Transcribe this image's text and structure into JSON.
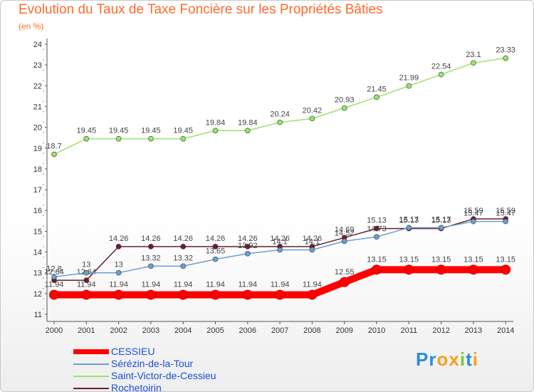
{
  "title": "Evolution du Taux de Taxe Foncière sur les Propriétés Bâties",
  "subtitle": "(en %)",
  "logo": {
    "text": "Proxiti"
  },
  "chart_data": {
    "type": "line",
    "title": "Evolution du Taux de Taxe Foncière sur les Propriétés Bâties",
    "ylabel": "(en %)",
    "xlabel": "",
    "ylim": [
      11,
      24
    ],
    "yticks": [
      11,
      12,
      13,
      14,
      15,
      16,
      17,
      18,
      19,
      20,
      21,
      22,
      23,
      24
    ],
    "grid": false,
    "categories": [
      "2000",
      "2001",
      "2002",
      "2003",
      "2004",
      "2005",
      "2006",
      "2007",
      "2008",
      "2009",
      "2010",
      "2011",
      "2012",
      "2013",
      "2014"
    ],
    "series": [
      {
        "name": "Rochetoirin",
        "color": "#6b1e2a",
        "values": [
          12.64,
          12.64,
          14.26,
          14.26,
          14.26,
          14.26,
          14.26,
          14.26,
          14.26,
          14.69,
          15.13,
          15.13,
          15.13,
          15.59,
          15.59
        ]
      },
      {
        "name": "Sérézin-de-la-Tour",
        "color": "#6a9fd4",
        "values": [
          12.8,
          13,
          13,
          13.32,
          13.32,
          13.65,
          13.92,
          14.1,
          14.1,
          14.52,
          14.73,
          15.17,
          15.17,
          15.47,
          15.47
        ]
      },
      {
        "name": "Saint-Victor-de-Cessieu",
        "color": "#9be36a",
        "values": [
          18.7,
          19.45,
          19.45,
          19.45,
          19.45,
          19.84,
          19.84,
          20.24,
          20.42,
          20.93,
          21.45,
          21.99,
          22.54,
          23.1,
          23.33
        ]
      },
      {
        "name": "CESSIEU",
        "color": "#ff0000",
        "values": [
          11.94,
          11.94,
          11.94,
          11.94,
          11.94,
          11.94,
          11.94,
          11.94,
          11.94,
          12.55,
          13.15,
          13.15,
          13.15,
          13.15,
          13.15
        ]
      }
    ],
    "legend": [
      "CESSIEU",
      "Sérézin-de-la-Tour",
      "Saint-Victor-de-Cessieu",
      "Rochetoirin"
    ]
  }
}
